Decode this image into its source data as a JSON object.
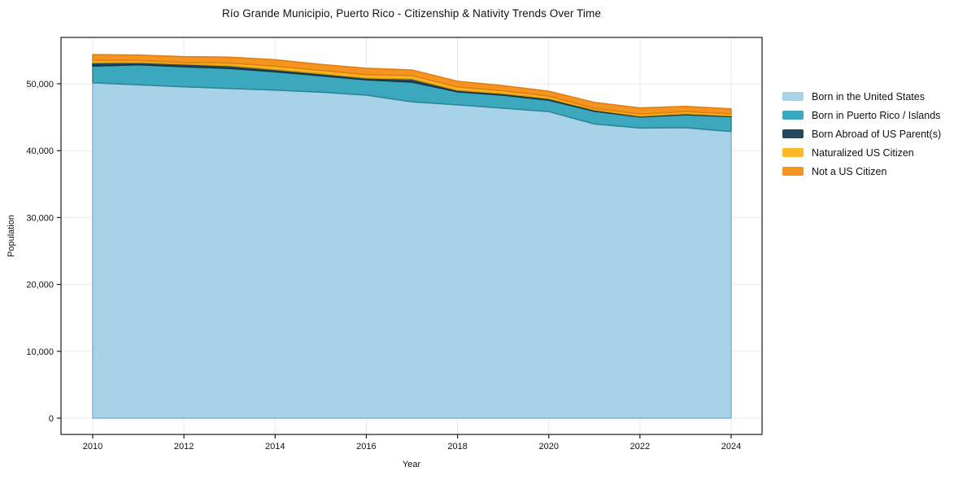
{
  "chart": {
    "title": "Río Grande Municipio, Puerto Rico - Citizenship & Nativity Trends Over Time",
    "xlabel": "Year",
    "ylabel": "Population"
  },
  "chart_data": {
    "type": "area",
    "stacked": true,
    "title": "Río Grande Municipio, Puerto Rico - Citizenship & Nativity Trends Over Time",
    "xlabel": "Year",
    "ylabel": "Population",
    "grid": true,
    "grid_color": "#e8e8e8",
    "spine_color": "#1a1a1a",
    "legend_position": "right-outside",
    "xlim": [
      2009.37,
      2024.68
    ],
    "ylim": [
      -2430,
      56930
    ],
    "x": [
      2010,
      2011,
      2012,
      2013,
      2014,
      2015,
      2016,
      2017,
      2018,
      2019,
      2020,
      2021,
      2022,
      2023,
      2024
    ],
    "x_ticks": [
      {
        "v": 2010,
        "label": "2010"
      },
      {
        "v": 2012,
        "label": "2012"
      },
      {
        "v": 2014,
        "label": "2014"
      },
      {
        "v": 2016,
        "label": "2016"
      },
      {
        "v": 2018,
        "label": "2018"
      },
      {
        "v": 2020,
        "label": "2020"
      },
      {
        "v": 2022,
        "label": "2022"
      },
      {
        "v": 2024,
        "label": "2024"
      }
    ],
    "y_ticks": [
      {
        "v": 0,
        "label": "0"
      },
      {
        "v": 10000,
        "label": "10,000"
      },
      {
        "v": 20000,
        "label": "20,000"
      },
      {
        "v": 30000,
        "label": "30,000"
      },
      {
        "v": 40000,
        "label": "40,000"
      },
      {
        "v": 50000,
        "label": "50,000"
      }
    ],
    "series": [
      {
        "name": "Born in the United States",
        "color": "#a8d2e7",
        "edge_color": "#7fb4d4",
        "values": [
          50150,
          49850,
          49550,
          49300,
          49050,
          48750,
          48300,
          47300,
          46850,
          46350,
          45850,
          43990,
          43390,
          43430,
          42860
        ]
      },
      {
        "name": "Born in Puerto Rico / Islands",
        "color": "#3ba8be",
        "edge_color": "#2d8496",
        "values": [
          2500,
          3000,
          3000,
          3000,
          2750,
          2450,
          2300,
          2950,
          1950,
          1940,
          1700,
          1900,
          1650,
          1950,
          2230
        ]
      },
      {
        "name": "Born Abroad of US Parent(s)",
        "color": "#21485c",
        "edge_color": "#16323f",
        "values": [
          500,
          350,
          400,
          400,
          350,
          320,
          270,
          480,
          240,
          250,
          240,
          200,
          120,
          150,
          120
        ]
      },
      {
        "name": "Naturalized US Citizen",
        "color": "#fcb825",
        "edge_color": "#de9c0e",
        "values": [
          370,
          290,
          240,
          400,
          480,
          490,
          490,
          490,
          480,
          410,
          370,
          250,
          330,
          320,
          320
        ]
      },
      {
        "name": "Not a US Citizen",
        "color": "#f79421",
        "edge_color": "#dd7d10",
        "values": [
          850,
          820,
          870,
          890,
          980,
          890,
          970,
          850,
          860,
          770,
          730,
          880,
          900,
          780,
          730
        ]
      }
    ]
  }
}
